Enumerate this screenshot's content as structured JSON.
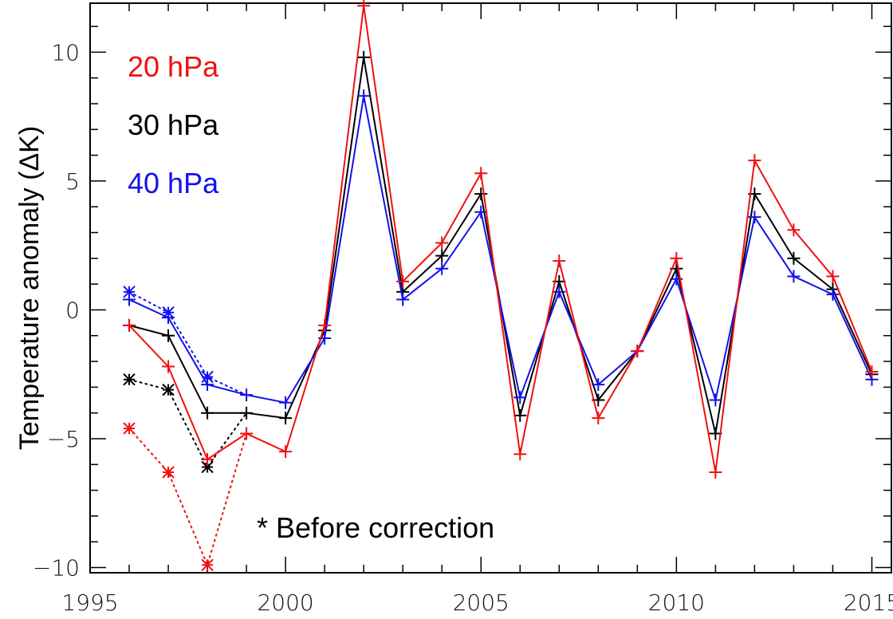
{
  "chart_data": {
    "type": "line",
    "title": "",
    "xlabel": "",
    "ylabel": "Temperature anomaly (ΔK)",
    "xlim": [
      1995,
      2015.5
    ],
    "ylim": [
      -10.2,
      11.9
    ],
    "xticks": [
      1995,
      2000,
      2005,
      2010,
      2015
    ],
    "yticks": [
      -10,
      -5,
      0,
      5,
      10
    ],
    "ytick_labels": [
      "−10",
      "−5",
      "0",
      "5",
      "10"
    ],
    "x": [
      1996,
      1997,
      1998,
      1999,
      2000,
      2001,
      2002,
      2003,
      2004,
      2005,
      2006,
      2007,
      2008,
      2009,
      2010,
      2011,
      2012,
      2013,
      2014,
      2015
    ],
    "series": [
      {
        "name": "20 hPa",
        "color": "#ee1111",
        "line_style": "solid",
        "marker": "plus",
        "values": [
          -0.6,
          -2.2,
          -5.8,
          -4.8,
          -5.5,
          -0.6,
          11.8,
          1.1,
          2.6,
          5.3,
          -5.6,
          1.9,
          -4.2,
          -1.6,
          2.0,
          -6.3,
          5.8,
          3.1,
          1.3,
          -2.4
        ]
      },
      {
        "name": "30 hPa",
        "color": "#000000",
        "line_style": "solid",
        "marker": "plus",
        "values": [
          -0.6,
          -1.0,
          -4.0,
          -4.0,
          -4.2,
          -0.8,
          9.8,
          0.7,
          2.1,
          4.5,
          -4.1,
          1.1,
          -3.5,
          -1.6,
          1.6,
          -4.8,
          4.5,
          2.0,
          0.8,
          -2.5
        ]
      },
      {
        "name": "40 hPa",
        "color": "#1111ee",
        "line_style": "solid",
        "marker": "plus",
        "values": [
          0.4,
          -0.3,
          -2.9,
          -3.3,
          -3.6,
          -1.1,
          8.3,
          0.4,
          1.6,
          3.8,
          -3.4,
          0.7,
          -2.9,
          -1.6,
          1.2,
          -3.5,
          3.6,
          1.3,
          0.6,
          -2.7
        ]
      }
    ],
    "before_correction": {
      "marker": "asterisk",
      "line_style": "dotted",
      "x": [
        1996,
        1997,
        1998,
        1999
      ],
      "series": [
        {
          "color": "#ee1111",
          "values": [
            -4.6,
            -6.3,
            -9.9,
            -4.8
          ]
        },
        {
          "color": "#000000",
          "values": [
            -2.7,
            -3.1,
            -6.1,
            -4.0
          ]
        },
        {
          "color": "#1111ee",
          "values": [
            0.7,
            -0.1,
            -2.6,
            -3.3
          ]
        }
      ]
    },
    "legend": {
      "placement": "top-left",
      "entries": [
        {
          "label": "20 hPa",
          "color": "#ee1111"
        },
        {
          "label": "30 hPa",
          "color": "#000000"
        },
        {
          "label": "40 hPa",
          "color": "#1111ee"
        }
      ]
    },
    "annotation": "* Before correction",
    "grid": false
  }
}
